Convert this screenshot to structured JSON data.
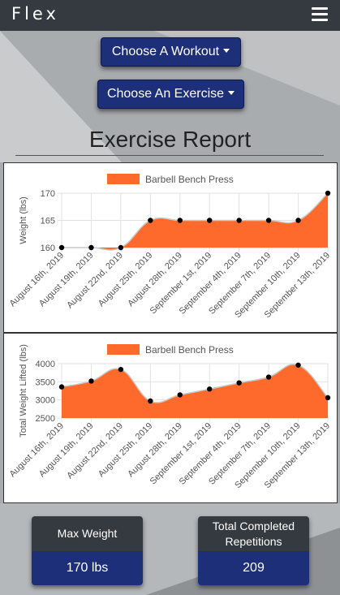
{
  "navbar": {
    "brand": "Flex",
    "menu_icon": "hamburger-menu-icon"
  },
  "controls": {
    "workout_dropdown": "Choose A Workout",
    "exercise_dropdown": "Choose An Exercise"
  },
  "report": {
    "title": "Exercise Report"
  },
  "colors": {
    "navbar": "#343a40",
    "button": "#1e2f7a",
    "series_fill": "#fd6a2b",
    "point": "#000000",
    "background": "#a9acaf"
  },
  "chart_data": [
    {
      "type": "area",
      "legend": "top",
      "series": [
        {
          "name": "Barbell Bench Press"
        }
      ],
      "x": [
        "August 16th, 2019",
        "August 19th, 2019",
        "August 22nd, 2019",
        "August 25th, 2019",
        "August 28th, 2019",
        "September 1st, 2019",
        "September 4th, 2019",
        "September 7th, 2019",
        "September 10th, 2019",
        "September 13th, 2019"
      ],
      "values": [
        160,
        160,
        160,
        165,
        165,
        165,
        165,
        165,
        165,
        170
      ],
      "ylabel": "Weight (lbs)",
      "yticks": [
        160,
        165,
        170
      ],
      "ylim": [
        160,
        170
      ],
      "grid": true
    },
    {
      "type": "area",
      "legend": "top",
      "series": [
        {
          "name": "Barbell Bench Press"
        }
      ],
      "x": [
        "August 16th, 2019",
        "August 19th, 2019",
        "August 22nd, 2019",
        "August 25th, 2019",
        "August 28th, 2019",
        "September 1st, 2019",
        "September 4th, 2019",
        "September 7th, 2019",
        "September 10th, 2019",
        "September 13th, 2019"
      ],
      "values": [
        3360,
        3520,
        3840,
        2970,
        3140,
        3300,
        3470,
        3630,
        3960,
        3060
      ],
      "ylabel": "Total Weight Lifted (lbs)",
      "yticks": [
        2500,
        3000,
        3500,
        4000
      ],
      "ylim": [
        2500,
        4000
      ],
      "grid": true
    }
  ],
  "stats": {
    "max_weight": {
      "label": "Max Weight",
      "value": "170 lbs"
    },
    "total_reps": {
      "label": "Total Completed Repetitions",
      "value": "209"
    }
  }
}
